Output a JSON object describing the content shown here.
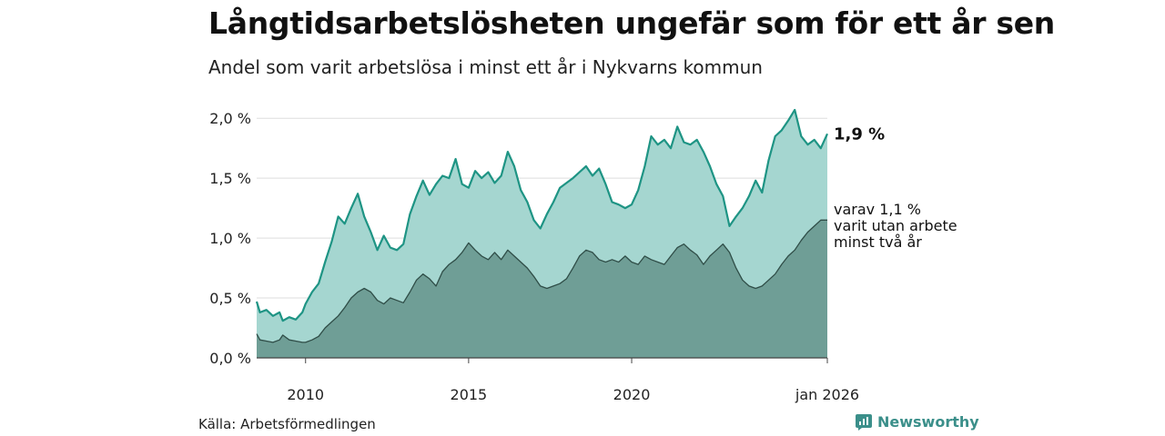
{
  "header": {
    "title": "Långtidsarbetslösheten ungefär som för ett år sen",
    "subtitle": "Andel som varit arbetslösa i minst ett år i Nykvarns kommun"
  },
  "footer": {
    "source": "Källa: Arbetsförmedlingen",
    "brand": "Newsworthy",
    "brand_icon": "newsworthy-logo-icon"
  },
  "colors": {
    "series1_line": "#1e9484",
    "series1_fill": "#a5d6d0",
    "series2_line": "#2f4d47",
    "series2_fill": "#6f9e96",
    "grid": "#dddddd",
    "brand": "#3b8f8a"
  },
  "chart_data": {
    "type": "area",
    "x_start": "2008-06",
    "x_end": "2026-01",
    "xticks": [
      {
        "x": 2010,
        "label": "2010"
      },
      {
        "x": 2015,
        "label": "2015"
      },
      {
        "x": 2020,
        "label": "2020"
      },
      {
        "x": 2026.0,
        "label": "jan 2026"
      }
    ],
    "ylim": [
      0,
      2.1
    ],
    "yticks": [
      0,
      0.5,
      1.0,
      1.5,
      2.0
    ],
    "ytick_labels": [
      "0,0 %",
      "0,5 %",
      "1,0 %",
      "1,5 %",
      "2,0 %"
    ],
    "grid": true,
    "series": [
      {
        "label": "1,9 %",
        "points": [
          [
            2008.5,
            0.47
          ],
          [
            2008.6,
            0.38
          ],
          [
            2008.8,
            0.4
          ],
          [
            2009.0,
            0.35
          ],
          [
            2009.2,
            0.38
          ],
          [
            2009.3,
            0.31
          ],
          [
            2009.5,
            0.34
          ],
          [
            2009.7,
            0.32
          ],
          [
            2009.9,
            0.38
          ],
          [
            2010.0,
            0.45
          ],
          [
            2010.2,
            0.55
          ],
          [
            2010.4,
            0.62
          ],
          [
            2010.6,
            0.8
          ],
          [
            2010.8,
            0.97
          ],
          [
            2011.0,
            1.18
          ],
          [
            2011.2,
            1.12
          ],
          [
            2011.4,
            1.25
          ],
          [
            2011.6,
            1.37
          ],
          [
            2011.8,
            1.18
          ],
          [
            2012.0,
            1.05
          ],
          [
            2012.2,
            0.9
          ],
          [
            2012.4,
            1.02
          ],
          [
            2012.6,
            0.92
          ],
          [
            2012.8,
            0.9
          ],
          [
            2013.0,
            0.95
          ],
          [
            2013.2,
            1.2
          ],
          [
            2013.4,
            1.35
          ],
          [
            2013.6,
            1.48
          ],
          [
            2013.8,
            1.36
          ],
          [
            2014.0,
            1.45
          ],
          [
            2014.2,
            1.52
          ],
          [
            2014.4,
            1.5
          ],
          [
            2014.6,
            1.66
          ],
          [
            2014.8,
            1.45
          ],
          [
            2015.0,
            1.42
          ],
          [
            2015.2,
            1.56
          ],
          [
            2015.4,
            1.5
          ],
          [
            2015.6,
            1.55
          ],
          [
            2015.8,
            1.46
          ],
          [
            2016.0,
            1.52
          ],
          [
            2016.2,
            1.72
          ],
          [
            2016.4,
            1.6
          ],
          [
            2016.6,
            1.4
          ],
          [
            2016.8,
            1.3
          ],
          [
            2017.0,
            1.15
          ],
          [
            2017.2,
            1.08
          ],
          [
            2017.4,
            1.2
          ],
          [
            2017.6,
            1.3
          ],
          [
            2017.8,
            1.42
          ],
          [
            2018.0,
            1.46
          ],
          [
            2018.2,
            1.5
          ],
          [
            2018.4,
            1.55
          ],
          [
            2018.6,
            1.6
          ],
          [
            2018.8,
            1.52
          ],
          [
            2019.0,
            1.58
          ],
          [
            2019.2,
            1.45
          ],
          [
            2019.4,
            1.3
          ],
          [
            2019.6,
            1.28
          ],
          [
            2019.8,
            1.25
          ],
          [
            2020.0,
            1.28
          ],
          [
            2020.2,
            1.4
          ],
          [
            2020.4,
            1.6
          ],
          [
            2020.6,
            1.85
          ],
          [
            2020.8,
            1.78
          ],
          [
            2021.0,
            1.82
          ],
          [
            2021.2,
            1.75
          ],
          [
            2021.4,
            1.93
          ],
          [
            2021.6,
            1.8
          ],
          [
            2021.8,
            1.78
          ],
          [
            2022.0,
            1.82
          ],
          [
            2022.2,
            1.72
          ],
          [
            2022.4,
            1.6
          ],
          [
            2022.6,
            1.45
          ],
          [
            2022.8,
            1.35
          ],
          [
            2023.0,
            1.1
          ],
          [
            2023.2,
            1.18
          ],
          [
            2023.4,
            1.25
          ],
          [
            2023.6,
            1.35
          ],
          [
            2023.8,
            1.48
          ],
          [
            2024.0,
            1.38
          ],
          [
            2024.2,
            1.65
          ],
          [
            2024.4,
            1.85
          ],
          [
            2024.6,
            1.9
          ],
          [
            2024.8,
            1.98
          ],
          [
            2025.0,
            2.07
          ],
          [
            2025.2,
            1.85
          ],
          [
            2025.4,
            1.78
          ],
          [
            2025.6,
            1.82
          ],
          [
            2025.8,
            1.75
          ],
          [
            2026.0,
            1.87
          ]
        ]
      },
      {
        "label": "varav 1,1 % varit utan arbete minst två år",
        "points": [
          [
            2008.5,
            0.2
          ],
          [
            2008.6,
            0.15
          ],
          [
            2008.8,
            0.14
          ],
          [
            2009.0,
            0.13
          ],
          [
            2009.2,
            0.15
          ],
          [
            2009.3,
            0.19
          ],
          [
            2009.5,
            0.15
          ],
          [
            2009.7,
            0.14
          ],
          [
            2009.9,
            0.13
          ],
          [
            2010.0,
            0.13
          ],
          [
            2010.2,
            0.15
          ],
          [
            2010.4,
            0.18
          ],
          [
            2010.6,
            0.25
          ],
          [
            2010.8,
            0.3
          ],
          [
            2011.0,
            0.35
          ],
          [
            2011.2,
            0.42
          ],
          [
            2011.4,
            0.5
          ],
          [
            2011.6,
            0.55
          ],
          [
            2011.8,
            0.58
          ],
          [
            2012.0,
            0.55
          ],
          [
            2012.2,
            0.48
          ],
          [
            2012.4,
            0.45
          ],
          [
            2012.6,
            0.5
          ],
          [
            2012.8,
            0.48
          ],
          [
            2013.0,
            0.46
          ],
          [
            2013.2,
            0.55
          ],
          [
            2013.4,
            0.65
          ],
          [
            2013.6,
            0.7
          ],
          [
            2013.8,
            0.66
          ],
          [
            2014.0,
            0.6
          ],
          [
            2014.2,
            0.72
          ],
          [
            2014.4,
            0.78
          ],
          [
            2014.6,
            0.82
          ],
          [
            2014.8,
            0.88
          ],
          [
            2015.0,
            0.96
          ],
          [
            2015.2,
            0.9
          ],
          [
            2015.4,
            0.85
          ],
          [
            2015.6,
            0.82
          ],
          [
            2015.8,
            0.88
          ],
          [
            2016.0,
            0.82
          ],
          [
            2016.2,
            0.9
          ],
          [
            2016.4,
            0.85
          ],
          [
            2016.6,
            0.8
          ],
          [
            2016.8,
            0.75
          ],
          [
            2017.0,
            0.68
          ],
          [
            2017.2,
            0.6
          ],
          [
            2017.4,
            0.58
          ],
          [
            2017.6,
            0.6
          ],
          [
            2017.8,
            0.62
          ],
          [
            2018.0,
            0.66
          ],
          [
            2018.2,
            0.75
          ],
          [
            2018.4,
            0.85
          ],
          [
            2018.6,
            0.9
          ],
          [
            2018.8,
            0.88
          ],
          [
            2019.0,
            0.82
          ],
          [
            2019.2,
            0.8
          ],
          [
            2019.4,
            0.82
          ],
          [
            2019.6,
            0.8
          ],
          [
            2019.8,
            0.85
          ],
          [
            2020.0,
            0.8
          ],
          [
            2020.2,
            0.78
          ],
          [
            2020.4,
            0.85
          ],
          [
            2020.6,
            0.82
          ],
          [
            2020.8,
            0.8
          ],
          [
            2021.0,
            0.78
          ],
          [
            2021.2,
            0.85
          ],
          [
            2021.4,
            0.92
          ],
          [
            2021.6,
            0.95
          ],
          [
            2021.8,
            0.9
          ],
          [
            2022.0,
            0.86
          ],
          [
            2022.2,
            0.78
          ],
          [
            2022.4,
            0.85
          ],
          [
            2022.6,
            0.9
          ],
          [
            2022.8,
            0.95
          ],
          [
            2023.0,
            0.88
          ],
          [
            2023.2,
            0.75
          ],
          [
            2023.4,
            0.65
          ],
          [
            2023.6,
            0.6
          ],
          [
            2023.8,
            0.58
          ],
          [
            2024.0,
            0.6
          ],
          [
            2024.2,
            0.65
          ],
          [
            2024.4,
            0.7
          ],
          [
            2024.6,
            0.78
          ],
          [
            2024.8,
            0.85
          ],
          [
            2025.0,
            0.9
          ],
          [
            2025.2,
            0.98
          ],
          [
            2025.4,
            1.05
          ],
          [
            2025.6,
            1.1
          ],
          [
            2025.8,
            1.15
          ],
          [
            2026.0,
            1.15
          ]
        ]
      }
    ],
    "annotations": [
      {
        "series": 0,
        "lines": [
          "1,9 %"
        ]
      },
      {
        "series": 1,
        "lines": [
          "varav 1,1 %",
          "varit utan arbete",
          "minst två år"
        ]
      }
    ]
  }
}
